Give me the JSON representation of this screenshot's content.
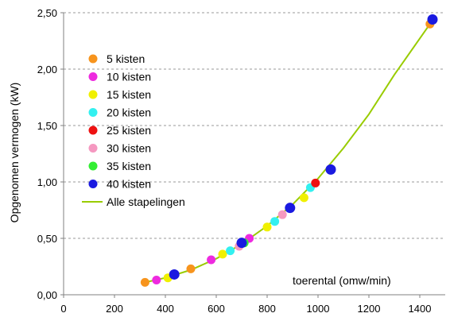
{
  "chart_data": {
    "type": "scatter",
    "title": "",
    "xlabel": "toerental (omw/min)",
    "ylabel": "Opgenomen vermogen (kW)",
    "xlim": [
      0,
      1500
    ],
    "ylim": [
      0,
      2.5
    ],
    "x_ticks": [
      "0",
      "200",
      "400",
      "600",
      "800",
      "1000",
      "1200",
      "1400"
    ],
    "y_ticks": [
      "0,00",
      "0,50",
      "1,00",
      "1,50",
      "2,00",
      "2,50"
    ],
    "grid": "horizontal dashed",
    "legend_position": "left",
    "series": [
      {
        "name": "5 kisten",
        "color": "#F7941D",
        "points": [
          [
            320,
            0.11
          ],
          [
            500,
            0.23
          ],
          [
            1440,
            2.4
          ]
        ]
      },
      {
        "name": "10 kisten",
        "color": "#EE2ADF",
        "points": [
          [
            365,
            0.13
          ],
          [
            580,
            0.31
          ],
          [
            730,
            0.5
          ]
        ]
      },
      {
        "name": "15 kisten",
        "color": "#F0F000",
        "points": [
          [
            410,
            0.15
          ],
          [
            625,
            0.36
          ],
          [
            800,
            0.6
          ],
          [
            945,
            0.86
          ]
        ]
      },
      {
        "name": "20 kisten",
        "color": "#33F0F0",
        "points": [
          [
            655,
            0.39
          ],
          [
            830,
            0.65
          ],
          [
            970,
            0.95
          ]
        ]
      },
      {
        "name": "25 kisten",
        "color": "#EE1111",
        "points": [
          [
            990,
            0.99
          ]
        ]
      },
      {
        "name": "30 kisten",
        "color": "#F598C0",
        "points": [
          [
            690,
            0.43
          ],
          [
            860,
            0.71
          ]
        ]
      },
      {
        "name": "35 kisten",
        "color": "#33EE33",
        "points": [
          [
            710,
            0.46
          ]
        ]
      },
      {
        "name": "40 kisten",
        "color": "#1A1AE0",
        "points": [
          [
            435,
            0.18
          ],
          [
            700,
            0.46
          ],
          [
            890,
            0.77
          ],
          [
            1050,
            1.11
          ],
          [
            1450,
            2.44
          ]
        ]
      }
    ],
    "fit_line": {
      "name": "Alle stapelingen",
      "color": "#99CC00",
      "points": [
        [
          320,
          0.11
        ],
        [
          400,
          0.15
        ],
        [
          500,
          0.22
        ],
        [
          600,
          0.32
        ],
        [
          700,
          0.45
        ],
        [
          800,
          0.61
        ],
        [
          900,
          0.8
        ],
        [
          1000,
          1.03
        ],
        [
          1100,
          1.3
        ],
        [
          1200,
          1.6
        ],
        [
          1300,
          1.95
        ],
        [
          1440,
          2.4
        ]
      ]
    }
  }
}
